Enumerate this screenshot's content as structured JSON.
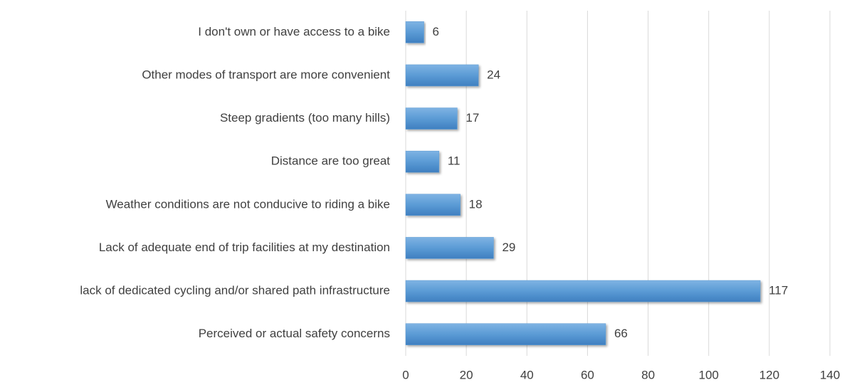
{
  "chart_data": {
    "type": "barh",
    "categories": [
      "I don't own or have access to a bike",
      "Other modes of transport are more convenient",
      "Steep gradients (too many hills)",
      "Distance are too great",
      "Weather conditions are not conducive to riding a bike",
      "Lack of adequate end of trip facilities at my destination",
      "lack of dedicated cycling and/or shared path infrastructure",
      "Perceived or actual safety concerns"
    ],
    "values": [
      6,
      24,
      17,
      11,
      18,
      29,
      117,
      66
    ],
    "color": "#5b9bd5",
    "xlim": [
      0,
      140
    ],
    "xticks": [
      0,
      20,
      40,
      60,
      80,
      100,
      120,
      140
    ],
    "grid": true
  }
}
